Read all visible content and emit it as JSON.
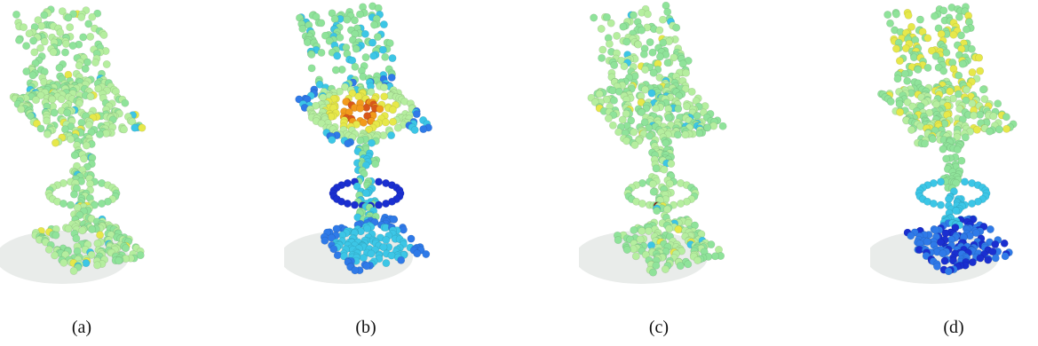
{
  "figure": {
    "panels": [
      {
        "caption": "(a)",
        "colormap": "uniform-green",
        "scheme": "a"
      },
      {
        "caption": "(b)",
        "colormap": "seat-orange-edges-blue",
        "scheme": "b"
      },
      {
        "caption": "(c)",
        "colormap": "uniform-green-few-outliers",
        "scheme": "c"
      },
      {
        "caption": "(d)",
        "colormap": "top-yellow-bottom-blue",
        "scheme": "d"
      }
    ],
    "colors": {
      "blue_dark": "#1a2fd0",
      "blue": "#2f7ae8",
      "cyan": "#3cc6e6",
      "green": "#8fe39a",
      "light_green": "#b5ee9f",
      "yellow": "#e6e84a",
      "orange": "#f29a1c",
      "red": "#d8571a",
      "dark_red": "#8a1a12"
    }
  }
}
